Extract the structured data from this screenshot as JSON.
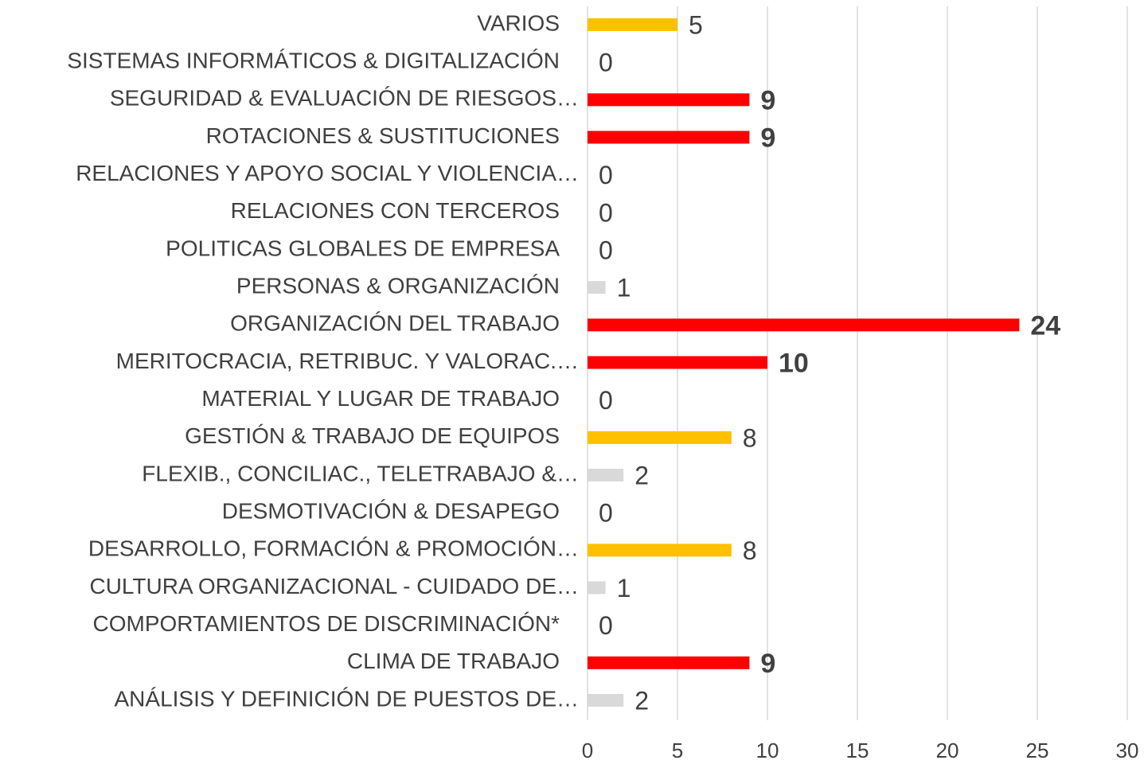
{
  "chart_data": {
    "type": "hbar",
    "categories": [
      "VARIOS",
      "SISTEMAS INFORMÁTICOS & DIGITALIZACIÓN",
      "SEGURIDAD & EVALUACIÓN DE RIESGOS…",
      "ROTACIONES & SUSTITUCIONES",
      "RELACIONES Y APOYO SOCIAL Y VIOLENCIA…",
      "RELACIONES CON TERCEROS",
      "POLITICAS GLOBALES DE EMPRESA",
      "PERSONAS & ORGANIZACIÓN",
      "ORGANIZACIÓN DEL TRABAJO",
      "MERITOCRACIA, RETRIBUC. Y VALORAC.…",
      "MATERIAL Y LUGAR DE TRABAJO",
      "GESTIÓN & TRABAJO DE EQUIPOS",
      "FLEXIB., CONCILIAC., TELETRABAJO &…",
      "DESMOTIVACIÓN & DESAPEGO",
      "DESARROLLO, FORMACIÓN & PROMOCIÓN…",
      "CULTURA ORGANIZACIONAL - CUIDADO DE…",
      "COMPORTAMIENTOS DE DISCRIMINACIÓN*",
      "CLIMA DE TRABAJO",
      "ANÁLISIS Y DEFINICIÓN DE PUESTOS DE…"
    ],
    "values": [
      5,
      0,
      9,
      9,
      0,
      0,
      0,
      1,
      24,
      10,
      0,
      8,
      2,
      0,
      8,
      1,
      0,
      9,
      2
    ],
    "colors": [
      "#FFC000",
      "#FFC000",
      "#FF0000",
      "#FF0000",
      "#D9D9D9",
      "#D9D9D9",
      "#D9D9D9",
      "#D9D9D9",
      "#FF0000",
      "#FF0000",
      "#D9D9D9",
      "#FFC000",
      "#D9D9D9",
      "#D9D9D9",
      "#FFC000",
      "#D9D9D9",
      "#D9D9D9",
      "#FF0000",
      "#D9D9D9"
    ],
    "bold_labels": [
      false,
      false,
      true,
      true,
      false,
      false,
      false,
      false,
      true,
      true,
      false,
      false,
      false,
      false,
      false,
      false,
      false,
      true,
      false
    ],
    "xlim": [
      0,
      30
    ],
    "xticks": [
      0,
      5,
      10,
      15,
      20,
      25,
      30
    ],
    "grid": true
  }
}
